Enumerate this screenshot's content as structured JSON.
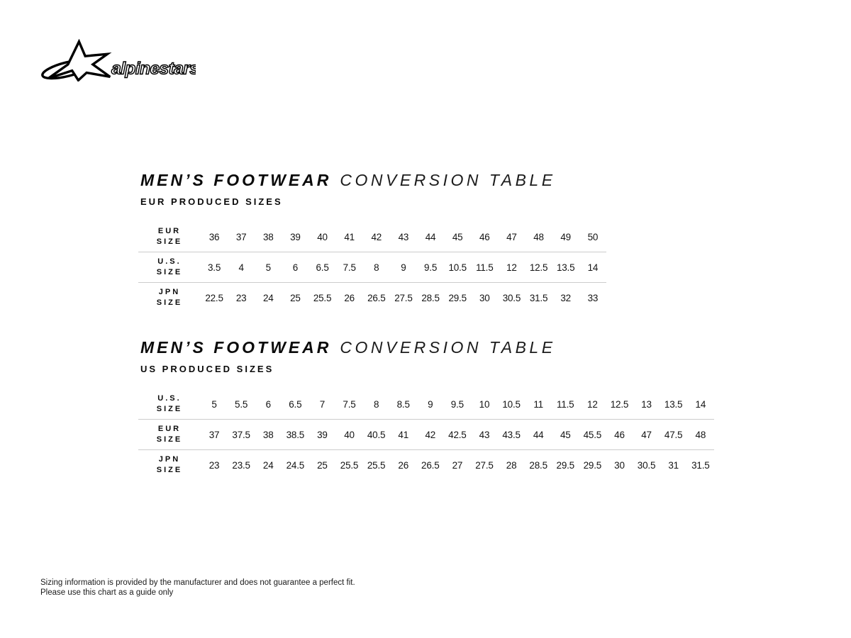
{
  "logo": {
    "brand": "alpinestars"
  },
  "sections": [
    {
      "title_bold": "MEN’S FOOTWEAR",
      "title_light": "CONVERSION TABLE",
      "subtitle": "EUR PRODUCED SIZES",
      "rows": [
        {
          "label": "EUR\nSIZE",
          "values": [
            "36",
            "37",
            "38",
            "39",
            "40",
            "41",
            "42",
            "43",
            "44",
            "45",
            "46",
            "47",
            "48",
            "49",
            "50"
          ]
        },
        {
          "label": "U.S.\nSIZE",
          "values": [
            "3.5",
            "4",
            "5",
            "6",
            "6.5",
            "7.5",
            "8",
            "9",
            "9.5",
            "10.5",
            "11.5",
            "12",
            "12.5",
            "13.5",
            "14"
          ]
        },
        {
          "label": "JPN\nSIZE",
          "values": [
            "22.5",
            "23",
            "24",
            "25",
            "25.5",
            "26",
            "26.5",
            "27.5",
            "28.5",
            "29.5",
            "30",
            "30.5",
            "31.5",
            "32",
            "33"
          ]
        }
      ]
    },
    {
      "title_bold": "MEN’S FOOTWEAR",
      "title_light": "CONVERSION TABLE",
      "subtitle": "US PRODUCED SIZES",
      "rows": [
        {
          "label": "U.S.\nSIZE",
          "values": [
            "5",
            "5.5",
            "6",
            "6.5",
            "7",
            "7.5",
            "8",
            "8.5",
            "9",
            "9.5",
            "10",
            "10.5",
            "11",
            "11.5",
            "12",
            "12.5",
            "13",
            "13.5",
            "14"
          ]
        },
        {
          "label": "EUR\nSIZE",
          "values": [
            "37",
            "37.5",
            "38",
            "38.5",
            "39",
            "40",
            "40.5",
            "41",
            "42",
            "42.5",
            "43",
            "43.5",
            "44",
            "45",
            "45.5",
            "46",
            "47",
            "47.5",
            "48"
          ]
        },
        {
          "label": "JPN\nSIZE",
          "values": [
            "23",
            "23.5",
            "24",
            "24.5",
            "25",
            "25.5",
            "25.5",
            "26",
            "26.5",
            "27",
            "27.5",
            "28",
            "28.5",
            "29.5",
            "29.5",
            "30",
            "30.5",
            "31",
            "31.5"
          ]
        }
      ]
    }
  ],
  "footer": {
    "line1": "Sizing information is provided by the manufacturer and does not guarantee a perfect fit.",
    "line2": "Please use this chart as a guide only"
  }
}
